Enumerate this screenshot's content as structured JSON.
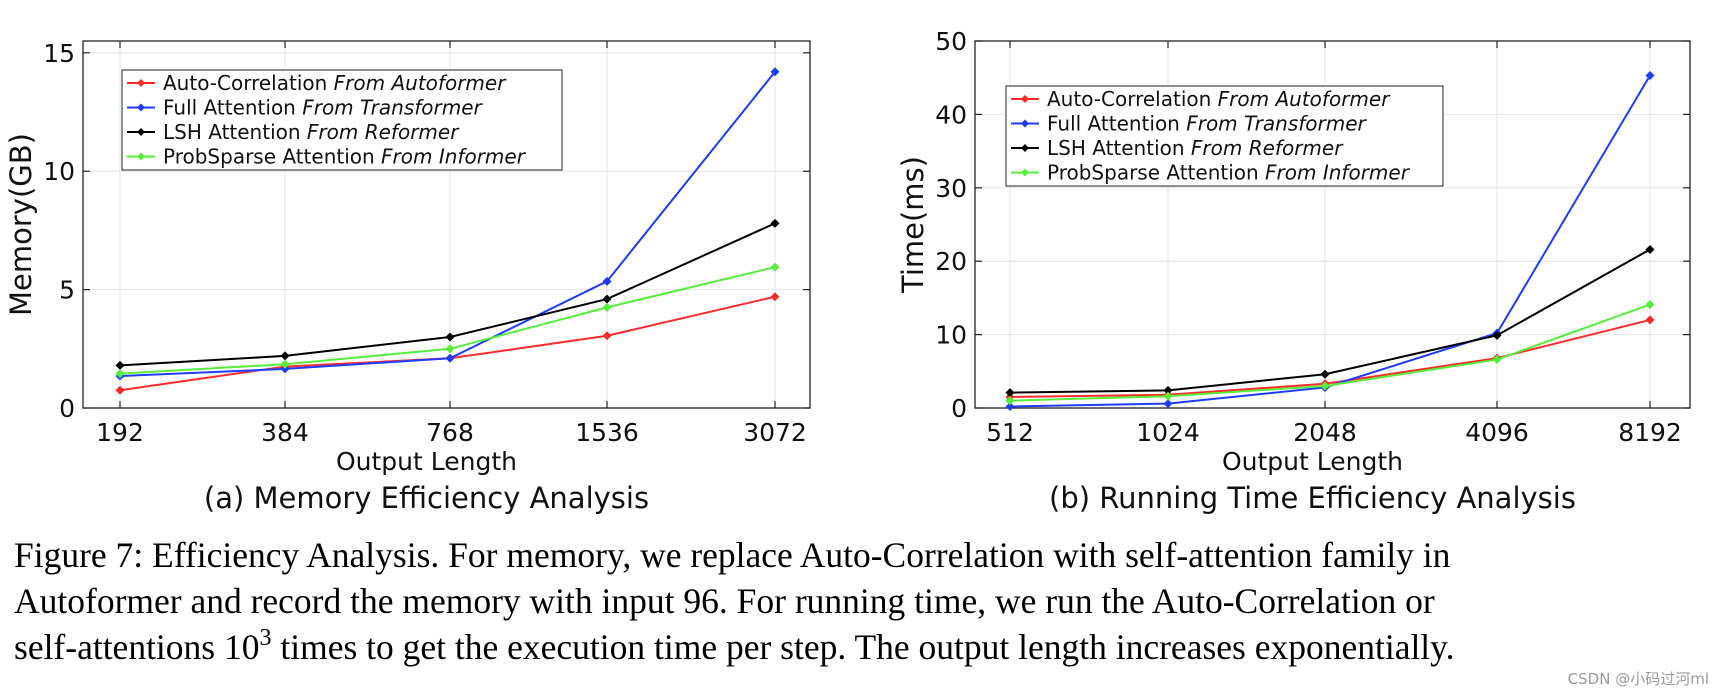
{
  "chart_data": [
    {
      "type": "line",
      "caption": "(a) Memory Efficiency Analysis",
      "xlabel": "Output Length",
      "ylabel": "Memory(GB)",
      "categories": [
        "192",
        "384",
        "768",
        "1536",
        "3072"
      ],
      "yticks": [
        "0",
        "5",
        "10",
        "15"
      ],
      "ylim": [
        0,
        15.5
      ],
      "grid": true,
      "legend_placement": "top-left",
      "series": [
        {
          "label": "Auto-Correlation",
          "from": "From Autoformer",
          "color": "#ff2a2a",
          "values": [
            0.75,
            1.75,
            2.1,
            3.05,
            4.7
          ]
        },
        {
          "label": "Full Attention",
          "from": "From Transformer",
          "color": "#1f3cff",
          "values": [
            1.35,
            1.65,
            2.1,
            5.35,
            14.2
          ]
        },
        {
          "label": "LSH Attention",
          "from": "From Reformer",
          "color": "#000000",
          "values": [
            1.8,
            2.2,
            3.0,
            4.6,
            7.8
          ]
        },
        {
          "label": "ProbSparse Attention",
          "from": "From Informer",
          "color": "#55ee3a",
          "values": [
            1.45,
            1.85,
            2.5,
            4.25,
            5.95
          ]
        }
      ]
    },
    {
      "type": "line",
      "caption": "(b) Running Time Efficiency Analysis",
      "xlabel": "Output Length",
      "ylabel": "Time(ms)",
      "categories": [
        "512",
        "1024",
        "2048",
        "4096",
        "8192"
      ],
      "yticks": [
        "0",
        "10",
        "20",
        "30",
        "40",
        "50"
      ],
      "ylim": [
        0,
        50
      ],
      "grid": true,
      "legend_placement": "top-left",
      "series": [
        {
          "label": "Auto-Correlation",
          "from": "From Autoformer",
          "color": "#ff2a2a",
          "values": [
            1.5,
            1.8,
            3.3,
            6.8,
            12.0
          ]
        },
        {
          "label": "Full Attention",
          "from": "From Transformer",
          "color": "#1f3cff",
          "values": [
            0.2,
            0.6,
            2.8,
            10.2,
            45.3
          ]
        },
        {
          "label": "LSH Attention",
          "from": "From Reformer",
          "color": "#000000",
          "values": [
            2.1,
            2.4,
            4.6,
            9.9,
            21.6
          ]
        },
        {
          "label": "ProbSparse Attention",
          "from": "From Informer",
          "color": "#55ee3a",
          "values": [
            1.0,
            1.6,
            3.0,
            6.6,
            14.1
          ]
        }
      ]
    }
  ],
  "caption": {
    "line1": "Figure 7: Efficiency Analysis. For memory, we replace Auto-Correlation with self-attention family in",
    "line2": "Autoformer and record the memory with input 96. For running time, we run the Auto-Correlation or",
    "line3_pre": "self-attentions 10",
    "line3_sup": "3",
    "line3_post": " times to get the execution time per step. The output length increases exponentially."
  },
  "watermark": "CSDN @小码过河ml"
}
